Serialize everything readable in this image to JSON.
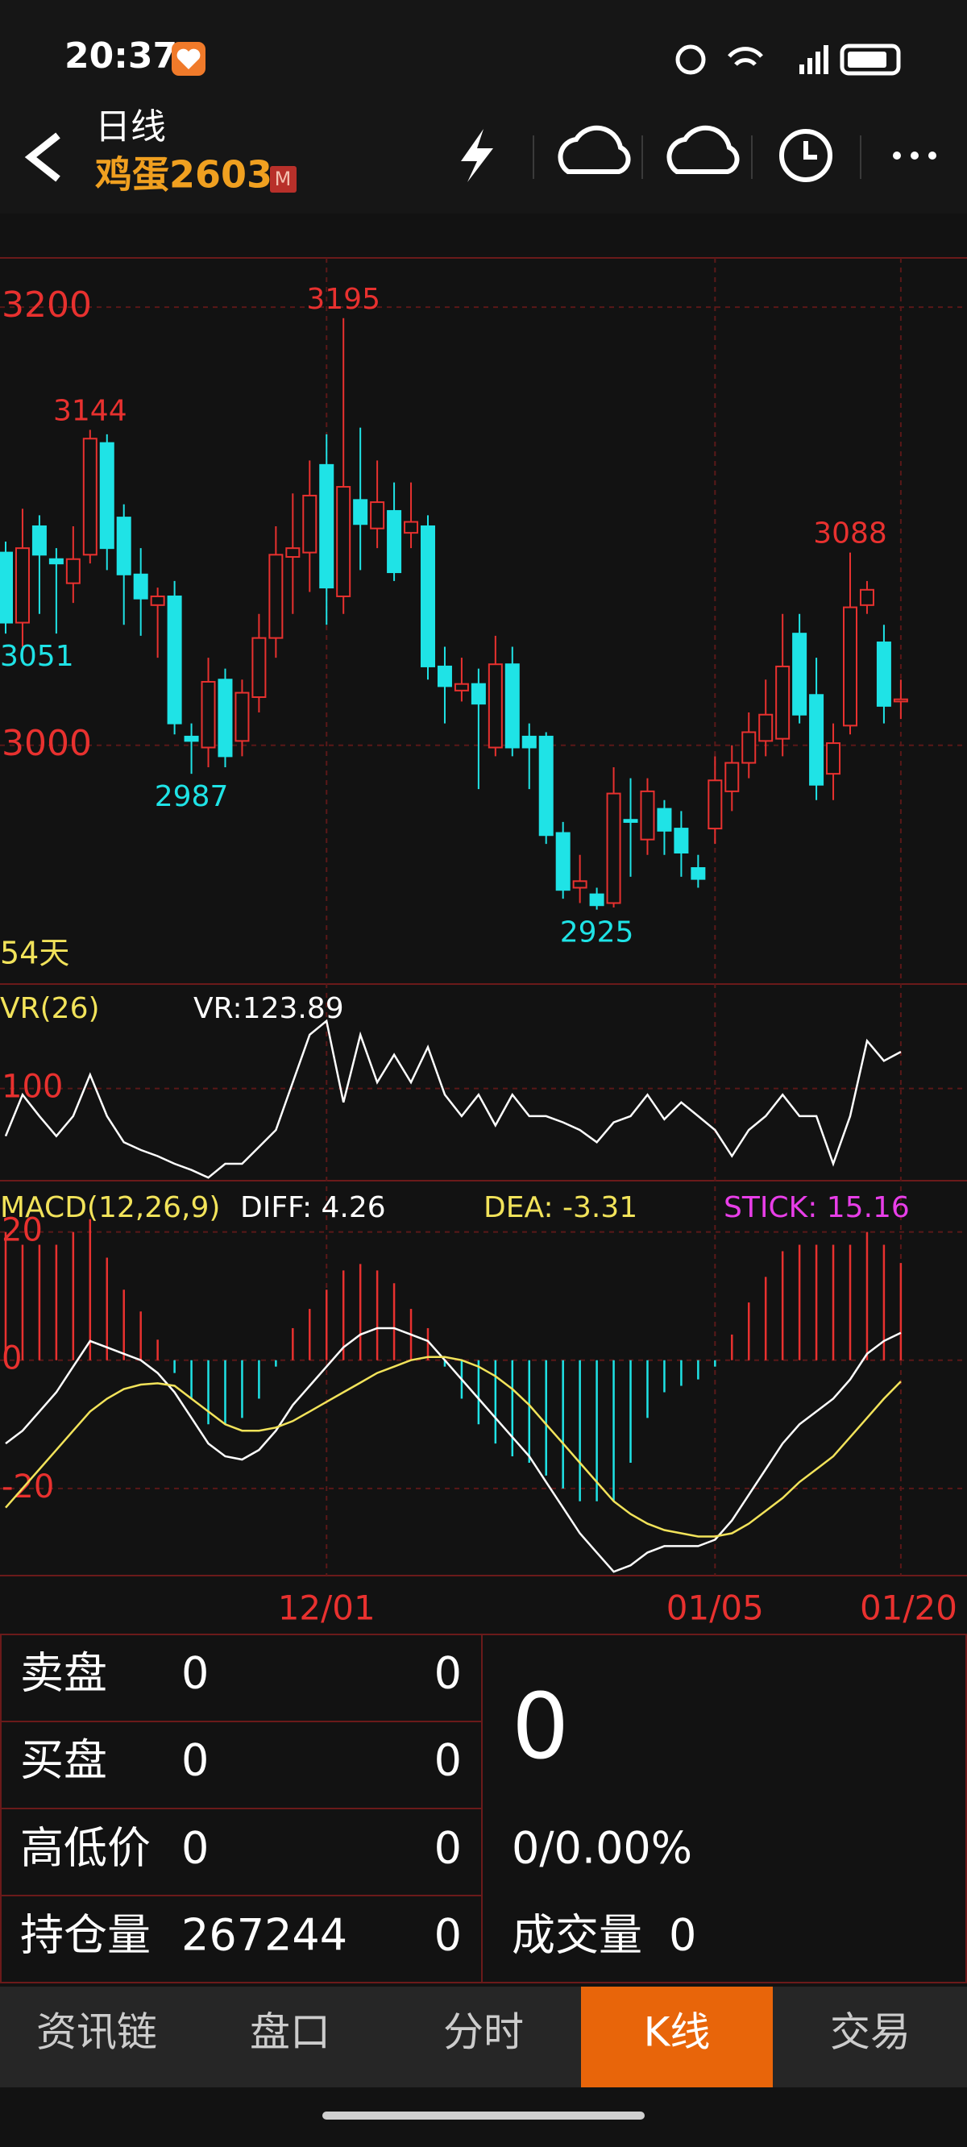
{
  "status_bar": {
    "time": "20:37"
  },
  "header": {
    "period": "日线",
    "symbol": "鸡蛋2603",
    "badge": "M"
  },
  "chart_data": [
    {
      "type": "candlestick",
      "period_label": "54天",
      "categories": [
        null,
        null,
        null,
        null,
        null,
        null,
        null,
        null,
        null,
        null,
        null,
        null,
        null,
        null,
        null,
        null,
        null,
        null,
        null,
        "12/01",
        null,
        null,
        null,
        null,
        null,
        null,
        null,
        null,
        null,
        null,
        null,
        null,
        null,
        null,
        null,
        null,
        null,
        null,
        null,
        null,
        null,
        null,
        "01/05",
        null,
        null,
        null,
        null,
        null,
        null,
        null,
        null,
        null,
        null,
        "01/20"
      ],
      "open": [
        3088,
        3056,
        3100,
        3085,
        3074,
        3087,
        3138,
        3104,
        3078,
        3064,
        3068,
        3004,
        2999,
        3030,
        3002,
        3022,
        3049,
        3086,
        3088,
        3128,
        3068,
        3112,
        3099,
        3107,
        3097,
        3100,
        3036,
        3025,
        3028,
        2999,
        3037,
        3004,
        3004,
        2960,
        2935,
        2932,
        2928,
        2966,
        2957,
        2971,
        2962,
        2944,
        2962,
        2979,
        2992,
        3002,
        3003,
        3051,
        3023,
        2987,
        3009,
        3064,
        3047,
        3020
      ],
      "high": [
        3093,
        3108,
        3105,
        3090,
        3100,
        3144,
        3142,
        3110,
        3090,
        3072,
        3075,
        3010,
        3040,
        3035,
        3030,
        3060,
        3100,
        3115,
        3130,
        3142,
        3195,
        3145,
        3130,
        3120,
        3120,
        3105,
        3045,
        3040,
        3035,
        3050,
        3045,
        3010,
        3006,
        2965,
        2950,
        2935,
        2990,
        2985,
        2985,
        2975,
        2970,
        2950,
        2995,
        3000,
        3015,
        3030,
        3060,
        3060,
        3040,
        3010,
        3088,
        3075,
        3055,
        3030
      ],
      "low": [
        3051,
        3045,
        3060,
        3051,
        3065,
        3083,
        3080,
        3055,
        3050,
        3040,
        3005,
        2987,
        2990,
        2990,
        2995,
        3015,
        3040,
        3060,
        3070,
        3055,
        3060,
        3080,
        3090,
        3075,
        3090,
        3030,
        3010,
        3020,
        2980,
        2995,
        2995,
        2980,
        2955,
        2930,
        2928,
        2925,
        2926,
        2940,
        2950,
        2950,
        2940,
        2935,
        2955,
        2970,
        2985,
        2995,
        2995,
        3010,
        2975,
        2975,
        3005,
        3060,
        3010,
        3012
      ],
      "close": [
        3056,
        3090,
        3087,
        3083,
        3085,
        3140,
        3090,
        3078,
        3067,
        3068,
        3010,
        3002,
        3029,
        2995,
        3024,
        3049,
        3087,
        3090,
        3114,
        3072,
        3118,
        3101,
        3111,
        3079,
        3102,
        3036,
        3027,
        3028,
        3019,
        3037,
        2999,
        2999,
        2959,
        2934,
        2938,
        2927,
        2978,
        2965,
        2979,
        2961,
        2951,
        2939,
        2984,
        2992,
        3006,
        3014,
        3036,
        3014,
        2982,
        3001,
        3063,
        3071,
        3018,
        3021
      ],
      "colors": {
        "up": "#e8312f",
        "down": "#1fe3e6"
      },
      "high_labels": [
        {
          "candle": 5,
          "value": 3144
        },
        {
          "candle": 20,
          "value": 3195
        },
        {
          "candle": 50,
          "value": 3088
        }
      ],
      "low_labels": [
        {
          "candle": 0,
          "value": 3051
        },
        {
          "candle": 11,
          "value": 2987
        },
        {
          "candle": 35,
          "value": 2925
        }
      ],
      "ylim": [
        2892.5,
        3222.5
      ],
      "yticks": [
        3200,
        3000
      ],
      "grid": true
    },
    {
      "type": "line",
      "title": "VR(26)",
      "readout": "VR:123.89",
      "series": [
        {
          "color": "#ffffff",
          "values": [
            69,
            96,
            82,
            69,
            82,
            109,
            82,
            65,
            60,
            56,
            51,
            47,
            42,
            51,
            51,
            62,
            73,
            104,
            135,
            144,
            91,
            135,
            104,
            122,
            104,
            127,
            96,
            82,
            96,
            76,
            96,
            82,
            82,
            78,
            73,
            65,
            78,
            82,
            96,
            80,
            91,
            82,
            73,
            56,
            73,
            82,
            96,
            82,
            82,
            51,
            82,
            131,
            118,
            123.89
          ]
        }
      ],
      "ylim": [
        40,
        168
      ],
      "yticks": [
        100
      ],
      "grid": true
    },
    {
      "type": "macd",
      "title": "MACD(12,26,9)",
      "series": [
        {
          "readout": "DIFF: 4.26",
          "color": "#ffffff",
          "values": [
            -13,
            -11,
            -8,
            -5,
            -1,
            3,
            2,
            1,
            0,
            -2,
            -5,
            -9,
            -13,
            -15,
            -15.5,
            -14,
            -11,
            -7,
            -4,
            -1,
            2,
            4,
            5,
            5,
            4,
            3,
            0,
            -3,
            -6,
            -9,
            -12,
            -15,
            -19,
            -23,
            -27,
            -30,
            -33,
            -32,
            -30,
            -29,
            -29,
            -29,
            -28,
            -25,
            -21,
            -17,
            -13,
            -10,
            -8,
            -6,
            -3,
            1,
            3,
            4.26
          ]
        },
        {
          "readout": "DEA: -3.31",
          "color": "#f2e35a",
          "values": [
            -23,
            -20,
            -17,
            -14,
            -11,
            -8,
            -6,
            -4.5,
            -3.8,
            -3.6,
            -4,
            -6,
            -8,
            -10,
            -11,
            -11,
            -10.5,
            -9.5,
            -8,
            -6.5,
            -5,
            -3.5,
            -2,
            -1,
            0,
            0.5,
            0.5,
            0,
            -1,
            -2.5,
            -4.5,
            -7,
            -10,
            -13,
            -16,
            -19,
            -22,
            -24,
            -25.5,
            -26.5,
            -27,
            -27.5,
            -27.5,
            -27,
            -25.5,
            -23.5,
            -21.5,
            -19,
            -17,
            -15,
            -12,
            -9,
            -6,
            -3.31
          ]
        },
        {
          "readout": "STICK: 15.16",
          "color": "#e83ee8",
          "type": "bar",
          "values": [
            20,
            18,
            18,
            18,
            20,
            22,
            16,
            11,
            7.6,
            3.2,
            -2,
            -6,
            -10,
            -10,
            -9,
            -6,
            -1,
            5,
            8,
            11,
            14,
            15,
            14,
            12,
            8,
            5,
            -1,
            -6,
            -10,
            -13,
            -15,
            -16,
            -18,
            -20,
            -22,
            -22,
            -22,
            -16,
            -9,
            -5,
            -4,
            -3,
            -1,
            4,
            9,
            13,
            17,
            18,
            18,
            18,
            18,
            20,
            18,
            15.16
          ]
        }
      ],
      "colors": {
        "up": "#e8312f",
        "down": "#1fe3e6"
      },
      "ylim": [
        -33.6,
        28
      ],
      "yticks": [
        20,
        0,
        -20
      ],
      "grid": true
    }
  ],
  "quote_table": {
    "rows": [
      [
        "卖盘",
        "0",
        "0"
      ],
      [
        "买盘",
        "0",
        "0"
      ],
      [
        "高低价",
        "0",
        "0"
      ],
      [
        "持仓量",
        "267244",
        "0"
      ]
    ]
  },
  "quote_summary": {
    "last": "0",
    "change": "0/0.00%",
    "volume_label": "成交量",
    "volume": "0"
  },
  "tabs": {
    "items": [
      "资讯链",
      "盘口",
      "分时",
      "K线",
      "交易"
    ],
    "active": 3
  }
}
